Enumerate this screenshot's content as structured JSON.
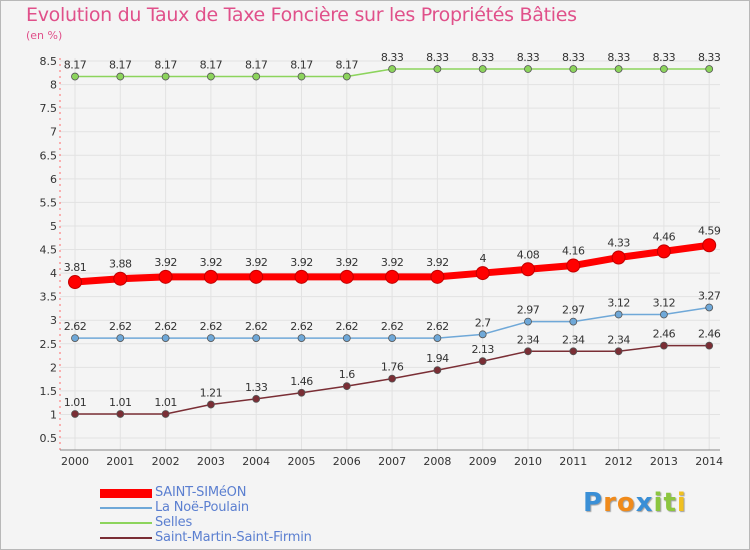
{
  "title": "Evolution du Taux de Taxe Foncière sur les Propriétés Bâties",
  "subtitle": "(en %)",
  "logo": {
    "text": "Proxiti",
    "letters": [
      "P",
      "r",
      "o",
      "x",
      "i",
      "t",
      "i"
    ],
    "colors": [
      "#3a8fd6",
      "#f08a1a",
      "#f08a1a",
      "#3a8fd6",
      "#8cc63f",
      "#8cc63f",
      "#f0c020"
    ]
  },
  "chart_data": {
    "type": "line",
    "title": "Evolution du Taux de Taxe Foncière sur les Propriétés Bâties",
    "ylabel": "(en %)",
    "xlabel": "",
    "x": [
      "2000",
      "2001",
      "2002",
      "2003",
      "2004",
      "2005",
      "2006",
      "2007",
      "2008",
      "2009",
      "2010",
      "2011",
      "2012",
      "2013",
      "2014"
    ],
    "ylim": [
      0.5,
      8.5
    ],
    "yticks": [
      {
        "value": 0.5,
        "label": "0.5"
      },
      {
        "value": 1,
        "label": "1"
      },
      {
        "value": 1.5,
        "label": "1.5"
      },
      {
        "value": 2,
        "label": "2"
      },
      {
        "value": 2.5,
        "label": "2.5"
      },
      {
        "value": 3,
        "label": "3"
      },
      {
        "value": 3.5,
        "label": "3.5"
      },
      {
        "value": 4,
        "label": "4"
      },
      {
        "value": 4.5,
        "label": "4.5"
      },
      {
        "value": 5,
        "label": "5"
      },
      {
        "value": 5.5,
        "label": "5.5"
      },
      {
        "value": 6,
        "label": "6"
      },
      {
        "value": 6.5,
        "label": "6.5"
      },
      {
        "value": 7,
        "label": "7"
      },
      {
        "value": 7.5,
        "label": "7.5"
      },
      {
        "value": 8,
        "label": "8"
      },
      {
        "value": 8.5,
        "label": "8.5"
      }
    ],
    "grid": true,
    "legend_position": "bottom-left",
    "series": [
      {
        "name": "Selles",
        "color": "#8cd45c",
        "values": [
          8.17,
          8.17,
          8.17,
          8.17,
          8.17,
          8.17,
          8.17,
          8.33,
          8.33,
          8.33,
          8.33,
          8.33,
          8.33,
          8.33,
          8.33
        ],
        "labels": [
          "8.17",
          "8.17",
          "8.17",
          "8.17",
          "8.17",
          "8.17",
          "8.17",
          "8.33",
          "8.33",
          "8.33",
          "8.33",
          "8.33",
          "8.33",
          "8.33",
          "8.33"
        ]
      },
      {
        "name": "La Noë-Poulain",
        "color": "#6fa8d8",
        "values": [
          2.62,
          2.62,
          2.62,
          2.62,
          2.62,
          2.62,
          2.62,
          2.62,
          2.62,
          2.7,
          2.97,
          2.97,
          3.12,
          3.12,
          3.27
        ],
        "labels": [
          "2.62",
          "2.62",
          "2.62",
          "2.62",
          "2.62",
          "2.62",
          "2.62",
          "2.62",
          "2.62",
          "2.7",
          "2.97",
          "2.97",
          "3.12",
          "3.12",
          "3.27"
        ]
      },
      {
        "name": "Saint-Martin-Saint-Firmin",
        "color": "#7a2e35",
        "values": [
          1.01,
          1.01,
          1.01,
          1.21,
          1.33,
          1.46,
          1.6,
          1.76,
          1.94,
          2.13,
          2.34,
          2.34,
          2.34,
          2.46,
          2.46
        ],
        "labels": [
          "1.01",
          "1.01",
          "1.01",
          "1.21",
          "1.33",
          "1.46",
          "1.6",
          "1.76",
          "1.94",
          "2.13",
          "2.34",
          "2.34",
          "2.34",
          "2.46",
          "2.46"
        ]
      },
      {
        "name": "SAINT-SIMéON",
        "color": "#ff0000",
        "values": [
          3.81,
          3.88,
          3.92,
          3.92,
          3.92,
          3.92,
          3.92,
          3.92,
          3.92,
          4,
          4.08,
          4.16,
          4.33,
          4.46,
          4.59
        ],
        "labels": [
          "3.81",
          "3.88",
          "3.92",
          "3.92",
          "3.92",
          "3.92",
          "3.92",
          "3.92",
          "3.92",
          "4",
          "4.08",
          "4.16",
          "4.33",
          "4.46",
          "4.59"
        ]
      }
    ],
    "legend": [
      {
        "name": "SAINT-SIMéON",
        "color": "#ff0000",
        "thick": true
      },
      {
        "name": "La Noë-Poulain",
        "color": "#6fa8d8",
        "thick": false
      },
      {
        "name": "Selles",
        "color": "#8cd45c",
        "thick": false
      },
      {
        "name": "Saint-Martin-Saint-Firmin",
        "color": "#7a2e35",
        "thick": false
      }
    ]
  }
}
